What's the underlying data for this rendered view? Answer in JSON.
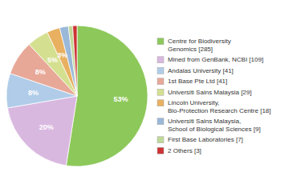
{
  "chart_data": {
    "type": "pie",
    "categories": [
      "Centre for Biodiversity\nGenomics [285]",
      "Mined from GenBank, NCBI [109]",
      "Andalas University [41]",
      "1st Base Pte Ltd [41]",
      "Universiti Sains Malaysia [29]",
      "Lincoln University,\nBio-Protection Research Centre [18]",
      "Universiti Sains Malaysia,\nSchool of Biological Sciences [9]",
      "First Base Laboratories [7]",
      "2 Others [3]"
    ],
    "values": [
      53,
      20,
      8,
      8,
      5,
      3,
      2,
      1,
      1
    ],
    "value_labels": [
      "53%",
      "20%",
      "8%",
      "8%",
      "5%",
      "3%",
      null,
      null,
      null
    ],
    "data_labels": true,
    "colors": [
      "#8dc85a",
      "#d9b8e0",
      "#b0cce8",
      "#e8a898",
      "#d4e090",
      "#e8b060",
      "#9ab8d8",
      "#c0d898",
      "#cc3333"
    ],
    "legend": "right"
  }
}
